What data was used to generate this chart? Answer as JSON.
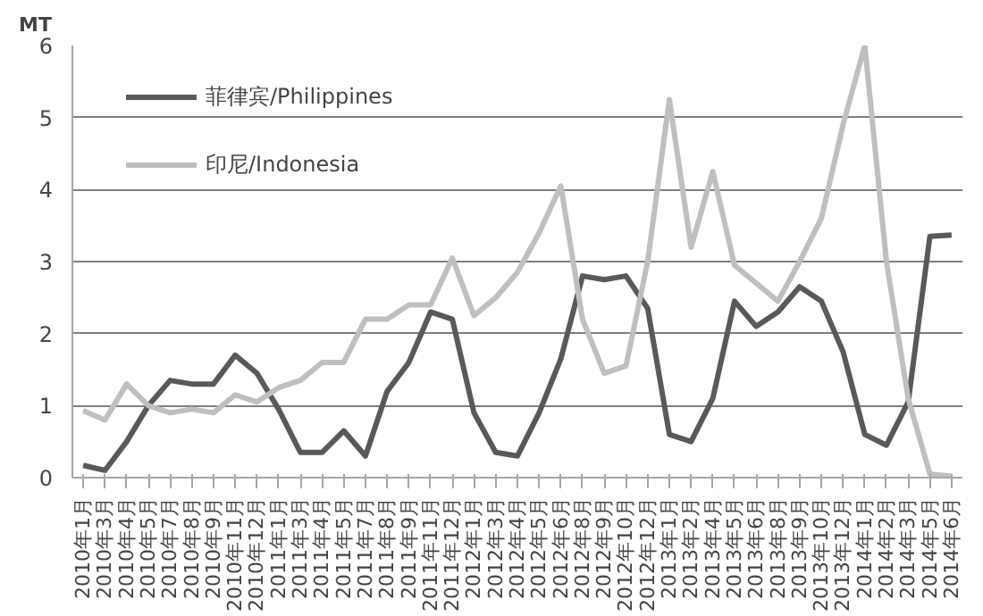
{
  "chart_data": {
    "type": "line",
    "ylabel": "MT",
    "categories": [
      "2010年1月",
      "2010年3月",
      "2010年4月",
      "2010年5月",
      "2010年7月",
      "2010年8月",
      "2010年9月",
      "2010年11月",
      "2010年12月",
      "2011年1月",
      "2011年3月",
      "2011年4月",
      "2011年5月",
      "2011年7月",
      "2011年8月",
      "2011年9月",
      "2011年11月",
      "2011年12月",
      "2012年1月",
      "2012年3月",
      "2012年4月",
      "2012年5月",
      "2012年6月",
      "2012年8月",
      "2012年9月",
      "2012年10月",
      "2012年12月",
      "2013年1月",
      "2013年2月",
      "2013年4月",
      "2013年5月",
      "2013年6月",
      "2013年8月",
      "2013年9月",
      "2013年10月",
      "2013年12月",
      "2014年1月",
      "2014年2月",
      "2014年3月",
      "2014年5月",
      "2014年6月"
    ],
    "series": [
      {
        "name": "菲律宾/Philippines",
        "color": "#595959",
        "values": [
          0.17,
          0.1,
          0.5,
          1.0,
          1.35,
          1.3,
          1.3,
          1.7,
          1.45,
          0.95,
          0.35,
          0.35,
          0.65,
          0.3,
          1.2,
          1.6,
          2.3,
          2.2,
          0.9,
          0.35,
          0.3,
          0.9,
          1.65,
          2.8,
          2.75,
          2.8,
          2.35,
          0.6,
          0.5,
          1.1,
          2.45,
          2.1,
          2.3,
          2.65,
          2.45,
          1.75,
          0.6,
          0.45,
          1.05,
          3.35,
          3.37
        ]
      },
      {
        "name": "印尼/Indonesia",
        "color": "#bfbfbf",
        "values": [
          0.93,
          0.8,
          1.3,
          1.0,
          0.9,
          0.95,
          0.9,
          1.15,
          1.05,
          1.25,
          1.35,
          1.6,
          1.6,
          2.2,
          2.2,
          2.4,
          2.4,
          3.05,
          2.25,
          2.5,
          2.85,
          3.4,
          4.05,
          2.2,
          1.45,
          1.55,
          3.0,
          5.25,
          3.2,
          4.25,
          2.95,
          2.7,
          2.45,
          3.0,
          3.6,
          4.9,
          6.0,
          3.0,
          1.1,
          0.05,
          0.02
        ]
      }
    ],
    "ylim": [
      0,
      6
    ],
    "yticks": [
      0,
      1,
      2,
      3,
      4,
      5,
      6
    ],
    "grid": "y",
    "legend": "top left",
    "line_style": "solid",
    "marker": "none"
  }
}
